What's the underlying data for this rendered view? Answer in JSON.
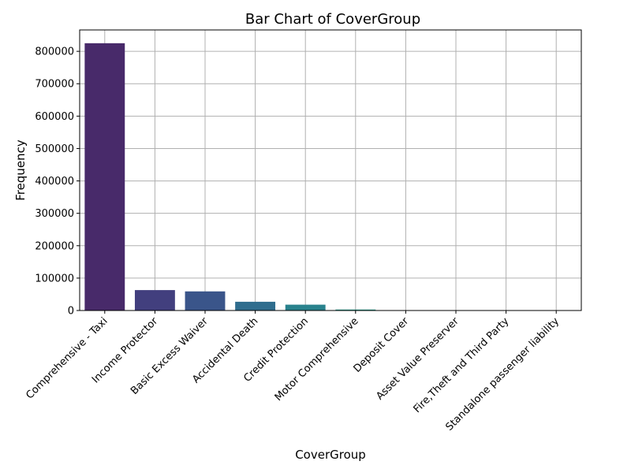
{
  "chart_data": {
    "type": "bar",
    "title": "Bar Chart of CoverGroup",
    "xlabel": "CoverGroup",
    "ylabel": "Frequency",
    "categories": [
      "Comprehensive - Taxi",
      "Income Protector",
      "Basic Excess Waiver",
      "Accidental Death",
      "Credit Protection",
      "Motor Comprehensive",
      "Deposit Cover",
      "Asset Value Preserver",
      "Fire,Theft and Third Party",
      "Standalone passenger liability"
    ],
    "values": [
      825000,
      63000,
      59000,
      27000,
      18000,
      3000,
      300,
      200,
      100,
      50
    ],
    "ylim": [
      0,
      866000
    ],
    "yticks": [
      0,
      100000,
      200000,
      300000,
      400000,
      500000,
      600000,
      700000,
      800000
    ],
    "colors": [
      "#482a6a",
      "#423f7e",
      "#3a558a",
      "#2f6d8e",
      "#29828d",
      "#229a8a",
      "#2aaf7f",
      "#49c26b",
      "#7ad150",
      "#b3dd2c"
    ],
    "grid": true,
    "legend": "none"
  }
}
